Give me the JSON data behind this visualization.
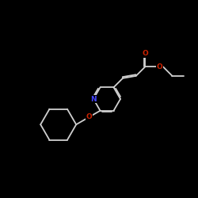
{
  "background_color": "#000000",
  "bond_color": "#d0d0d0",
  "atom_colors": {
    "N": "#4444ff",
    "O": "#cc2200"
  },
  "figsize": [
    2.5,
    2.5
  ],
  "dpi": 100,
  "xlim": [
    0,
    10
  ],
  "ylim": [
    0,
    10
  ]
}
